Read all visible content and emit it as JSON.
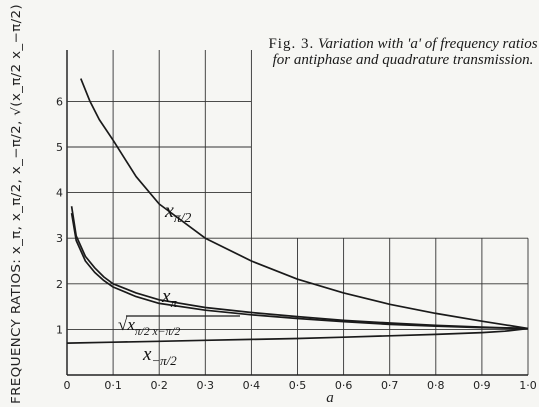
{
  "chart_data": {
    "type": "line",
    "title": "Fig. 3.  Variation with 'a' of frequency ratios for antiphase and quadrature transmission.",
    "caption": {
      "fig_no": "Fig. 3.",
      "text": "Variation with 'a' of frequency ratios for antiphase and quadrature transmission."
    },
    "xlabel": "a",
    "ylabel": "FREQUENCY RATIOS: x_π, x_π/2, x_−π/2, √(x_π/2 x_−π/2)",
    "xlim": [
      0,
      1.0
    ],
    "ylim": [
      0,
      6.5
    ],
    "xticks": [
      "0",
      "0·1",
      "0·2",
      "0·3",
      "0·4",
      "0·5",
      "0·6",
      "0·7",
      "0·8",
      "0·9",
      "1·0"
    ],
    "yticks": [
      "1",
      "2",
      "3",
      "4",
      "5",
      "6"
    ],
    "grid": true,
    "series": [
      {
        "name": "x_π/2",
        "label": "x",
        "sub": "π/2",
        "x": [
          0.03,
          0.05,
          0.07,
          0.1,
          0.15,
          0.2,
          0.3,
          0.4,
          0.5,
          0.6,
          0.7,
          0.8,
          0.9,
          0.95,
          1.0
        ],
        "y": [
          6.5,
          6.0,
          5.6,
          5.15,
          4.35,
          3.75,
          3.0,
          2.5,
          2.1,
          1.8,
          1.55,
          1.35,
          1.18,
          1.1,
          1.02
        ]
      },
      {
        "name": "x_π",
        "label": "x",
        "sub": "π",
        "x": [
          0.01,
          0.02,
          0.04,
          0.06,
          0.08,
          0.1,
          0.15,
          0.2,
          0.3,
          0.4,
          0.5,
          0.6,
          0.7,
          0.8,
          0.9,
          1.0
        ],
        "y": [
          3.7,
          3.05,
          2.6,
          2.35,
          2.15,
          2.0,
          1.8,
          1.65,
          1.48,
          1.37,
          1.28,
          1.2,
          1.14,
          1.09,
          1.05,
          1.02
        ]
      },
      {
        "name": "√(x_π/2 x_−π/2)",
        "label": "√x",
        "sub": "π/2 x−π/2",
        "x": [
          0.01,
          0.02,
          0.04,
          0.06,
          0.08,
          0.1,
          0.15,
          0.2,
          0.3,
          0.4,
          0.5,
          0.6,
          0.7,
          0.8,
          0.9,
          1.0
        ],
        "y": [
          3.55,
          2.95,
          2.5,
          2.25,
          2.07,
          1.93,
          1.72,
          1.57,
          1.42,
          1.32,
          1.24,
          1.17,
          1.11,
          1.07,
          1.04,
          1.02
        ]
      },
      {
        "name": "x_−π/2",
        "label": "x",
        "sub": "−π/2",
        "x": [
          0.0,
          0.1,
          0.2,
          0.3,
          0.4,
          0.5,
          0.6,
          0.7,
          0.8,
          0.9,
          0.95,
          1.0
        ],
        "y": [
          0.7,
          0.72,
          0.74,
          0.76,
          0.78,
          0.8,
          0.83,
          0.86,
          0.89,
          0.93,
          0.96,
          1.02
        ]
      }
    ],
    "curve_labels": [
      {
        "series": "x_π/2",
        "text": "x",
        "sub": "π/2"
      },
      {
        "series": "x_π",
        "text": "x",
        "sub": "π"
      },
      {
        "series": "√(x_π/2 x_−π/2)",
        "text": "√x",
        "sub": "π/2 x−π/2"
      },
      {
        "series": "x_−π/2",
        "text": "x",
        "sub": "−π/2"
      }
    ]
  }
}
